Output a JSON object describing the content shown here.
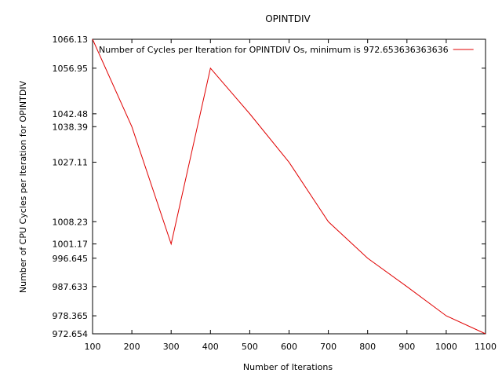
{
  "chart_data": {
    "type": "line",
    "title": "OPINTDIV",
    "xlabel": "Number of Iterations",
    "ylabel": "Number of CPU Cycles per Iteration for OPINTDIV",
    "xlim": [
      100,
      1100
    ],
    "ylim": [
      972.654,
      1066.13
    ],
    "x_ticks": [
      100,
      200,
      300,
      400,
      500,
      600,
      700,
      800,
      900,
      1000,
      1100
    ],
    "y_ticks": [
      {
        "value": 972.654,
        "label": "972.654"
      },
      {
        "value": 978.365,
        "label": "978.365"
      },
      {
        "value": 987.633,
        "label": "987.633"
      },
      {
        "value": 996.645,
        "label": "996.645"
      },
      {
        "value": 1001.17,
        "label": "1001.17"
      },
      {
        "value": 1008.23,
        "label": "1008.23"
      },
      {
        "value": 1027.11,
        "label": "1027.11"
      },
      {
        "value": 1038.39,
        "label": "1038.39"
      },
      {
        "value": 1042.48,
        "label": "1042.48"
      },
      {
        "value": 1056.95,
        "label": "1056.95"
      },
      {
        "value": 1066.13,
        "label": "1066.13"
      }
    ],
    "grid": false,
    "legend_position": "top-right",
    "series": [
      {
        "name": "Number of Cycles per Iteration for OPINTDIV Os, minimum is 972.653636363636",
        "color": "#e00000",
        "x": [
          100,
          200,
          300,
          400,
          500,
          600,
          700,
          800,
          900,
          1000,
          1100
        ],
        "y": [
          1066.13,
          1038.39,
          1001.17,
          1056.95,
          1042.48,
          1027.11,
          1008.23,
          996.645,
          987.633,
          978.365,
          972.654
        ]
      }
    ]
  }
}
